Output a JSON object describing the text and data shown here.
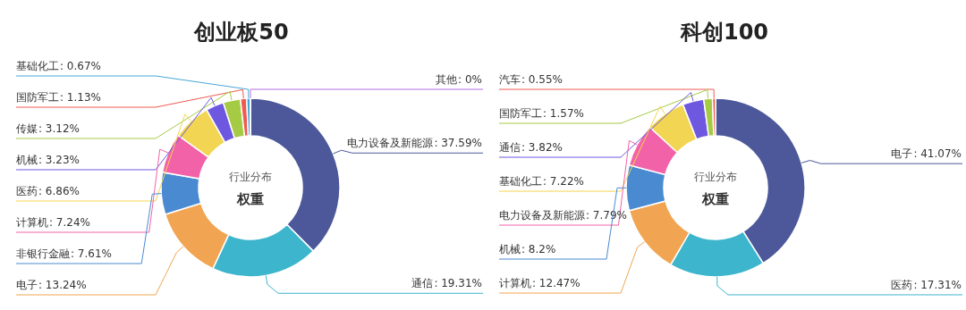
{
  "chart_data": [
    {
      "type": "donut",
      "title": "创业板50",
      "annotations": [
        "行业分布",
        "权重"
      ],
      "value_labels": [
        ": 37.59%",
        ": 19.31%",
        ": 13.24%",
        ": 7.61%",
        ": 7.24%",
        ": 6.86%",
        ": 3.23%",
        ": 3.12%",
        ": 1.13%",
        ": 0.67%",
        ": 0%"
      ],
      "categories": [
        "电力设备及新能源",
        "通信",
        "电子",
        "非银行金融",
        "计算机",
        "医药",
        "机械",
        "传媒",
        "国防军工",
        "基础化工",
        "其他"
      ],
      "values": [
        37.59,
        19.31,
        13.24,
        7.61,
        7.24,
        6.86,
        3.23,
        3.12,
        1.13,
        0.67,
        0
      ],
      "colors": [
        "#4c5899",
        "#3db5cc",
        "#f1a553",
        "#4a8ad1",
        "#f262a8",
        "#f2d552",
        "#6f58e0",
        "#a5cb45",
        "#ef5a50",
        "#47a6d8",
        "#b06ee5"
      ]
    },
    {
      "type": "donut",
      "title": "科创100",
      "annotations": [
        "行业分布",
        "权重"
      ],
      "value_labels": [
        ": 41.07%",
        ": 17.31%",
        ": 12.47%",
        ": 8.2%",
        ": 7.79%",
        ": 7.22%",
        ": 3.82%",
        ": 1.57%",
        ": 0.55%"
      ],
      "categories": [
        "电子",
        "医药",
        "计算机",
        "机械",
        "电力设备及新能源",
        "基础化工",
        "通信",
        "国防军工",
        "汽车"
      ],
      "values": [
        41.07,
        17.31,
        12.47,
        8.2,
        7.79,
        7.22,
        3.82,
        1.57,
        0.55
      ],
      "colors": [
        "#4c5899",
        "#3db5cc",
        "#f1a553",
        "#4a8ad1",
        "#f262a8",
        "#f2d552",
        "#6f58e0",
        "#a5cb45",
        "#ef5a50"
      ]
    }
  ]
}
